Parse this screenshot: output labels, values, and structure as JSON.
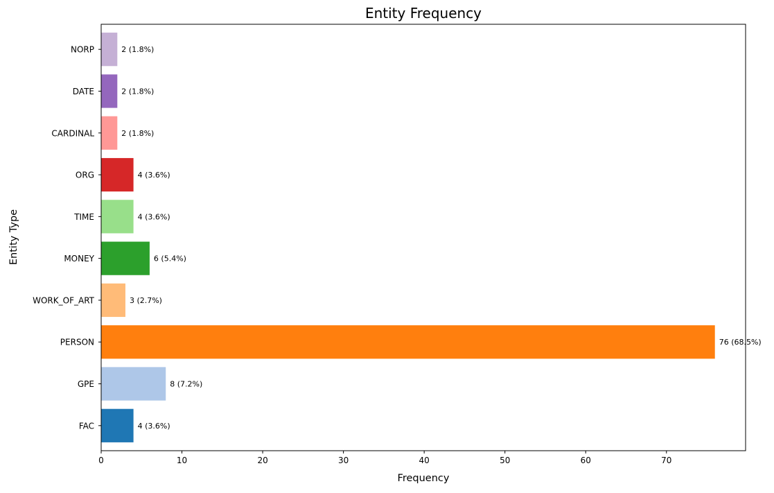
{
  "chart_data": {
    "type": "bar",
    "orientation": "horizontal",
    "title": "Entity Frequency",
    "xlabel": "Frequency",
    "ylabel": "Entity Type",
    "xlim": [
      0,
      79.8
    ],
    "x_ticks": [
      0,
      10,
      20,
      30,
      40,
      50,
      60,
      70
    ],
    "grid": false,
    "categories": [
      "FAC",
      "GPE",
      "PERSON",
      "WORK_OF_ART",
      "MONEY",
      "TIME",
      "ORG",
      "CARDINAL",
      "DATE",
      "NORP"
    ],
    "values": [
      4,
      8,
      76,
      3,
      6,
      4,
      4,
      2,
      2,
      2
    ],
    "value_labels": [
      "4 (3.6%)",
      "8 (7.2%)",
      "76 (68.5%)",
      "3 (2.7%)",
      "6 (5.4%)",
      "4 (3.6%)",
      "4 (3.6%)",
      "2 (1.8%)",
      "2 (1.8%)",
      "2 (1.8%)"
    ],
    "colors": [
      "#1f77b4",
      "#aec7e8",
      "#ff7f0e",
      "#ffbb78",
      "#2ca02c",
      "#98df8a",
      "#d62728",
      "#ff9896",
      "#9467bd",
      "#c5b0d5"
    ]
  }
}
